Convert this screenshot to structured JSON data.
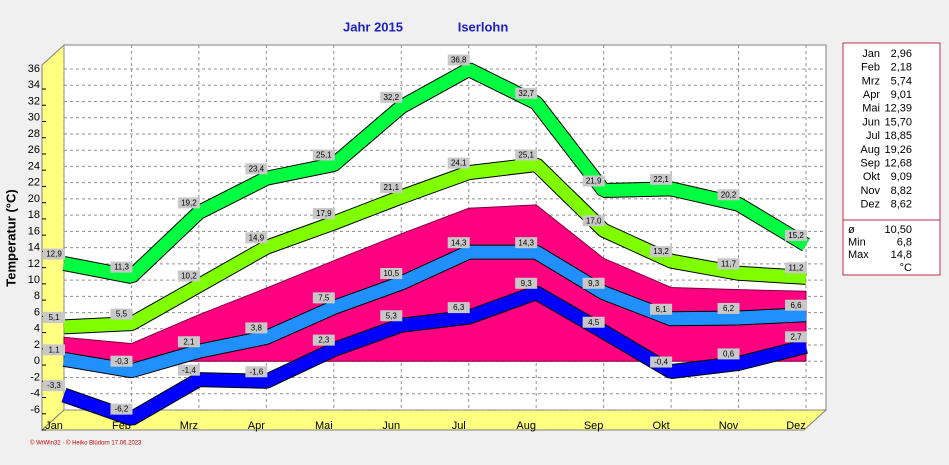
{
  "chart_data": {
    "type": "line",
    "title": "Jahr  2015",
    "location": "Iserlohn",
    "ylabel": "Temperatur  (°C)",
    "credit": "© WrWin32  ·  © Heiko Blüdorn  17.06.2023",
    "categories": [
      "Jan",
      "Feb",
      "Mrz",
      "Apr",
      "Mai",
      "Jun",
      "Jul",
      "Aug",
      "Sep",
      "Okt",
      "Nov",
      "Dez"
    ],
    "ylim": [
      -6,
      36
    ],
    "yticks": [
      -6,
      -4,
      -2,
      0,
      2,
      4,
      6,
      8,
      10,
      12,
      14,
      16,
      18,
      20,
      22,
      24,
      26,
      28,
      30,
      32,
      34,
      36
    ],
    "grid": true,
    "series": [
      {
        "style": "ribbon",
        "color": "#00ff40",
        "values": [
          12.9,
          11.3,
          19.2,
          23.4,
          25.1,
          32.2,
          36.8,
          32.7,
          21.9,
          22.1,
          20.2,
          15.2
        ],
        "value_labels": [
          "12,9",
          "11,3",
          "19,2",
          "23,4",
          "25,1",
          "32,2",
          "36,8",
          "32,7",
          "21,9",
          "22,1",
          "20,2",
          "15,2"
        ]
      },
      {
        "style": "ribbon",
        "color": "#80ff00",
        "values": [
          5.1,
          5.5,
          10.2,
          14.9,
          17.9,
          21.1,
          24.1,
          25.1,
          17.0,
          13.2,
          11.7,
          11.2
        ],
        "value_labels": [
          "5,1",
          "5,5",
          "10,2",
          "14,9",
          "17,9",
          "21,1",
          "24,1",
          "25,1",
          "17,0",
          "13,2",
          "11,7",
          "11,2"
        ]
      },
      {
        "style": "ribbon",
        "color": "#2090ff",
        "values": [
          1.1,
          -0.3,
          2.1,
          3.8,
          7.5,
          10.5,
          14.3,
          14.3,
          9.3,
          6.1,
          6.2,
          6.6
        ],
        "value_labels": [
          "1,1",
          "-0,3",
          "2,1",
          "3,8",
          "7,5",
          "10,5",
          "14,3",
          "14,3",
          "9,3",
          "6,1",
          "6,2",
          "6,6"
        ]
      },
      {
        "style": "ribbon",
        "color": "#0000ff",
        "values": [
          -3.3,
          -6.2,
          -1.4,
          -1.6,
          2.3,
          5.3,
          6.3,
          9.3,
          4.5,
          -0.4,
          0.6,
          2.7
        ],
        "value_labels": [
          "-3,3",
          "-6,2",
          "-1,4",
          "-1,6",
          "2,3",
          "5,3",
          "6,3",
          "9,3",
          "4,5",
          "-0,4",
          "0,6",
          "2,7"
        ]
      },
      {
        "style": "area",
        "color": "#ff0080",
        "values": [
          2.96,
          2.18,
          5.74,
          9.01,
          12.39,
          15.7,
          18.85,
          19.26,
          12.68,
          9.09,
          8.82,
          8.62
        ],
        "value_labels": [
          "2,96",
          "2,18",
          "5,74",
          "9,01",
          "12,39",
          "15,70",
          "18,85",
          "19,26",
          "12,68",
          "9,09",
          "8,82",
          "8,62"
        ]
      }
    ],
    "stats": [
      {
        "label": "ø",
        "value": "10,50"
      },
      {
        "label": "Min",
        "value": "6,8"
      },
      {
        "label": "Max",
        "value": "14,8"
      }
    ],
    "unit": "°C"
  }
}
